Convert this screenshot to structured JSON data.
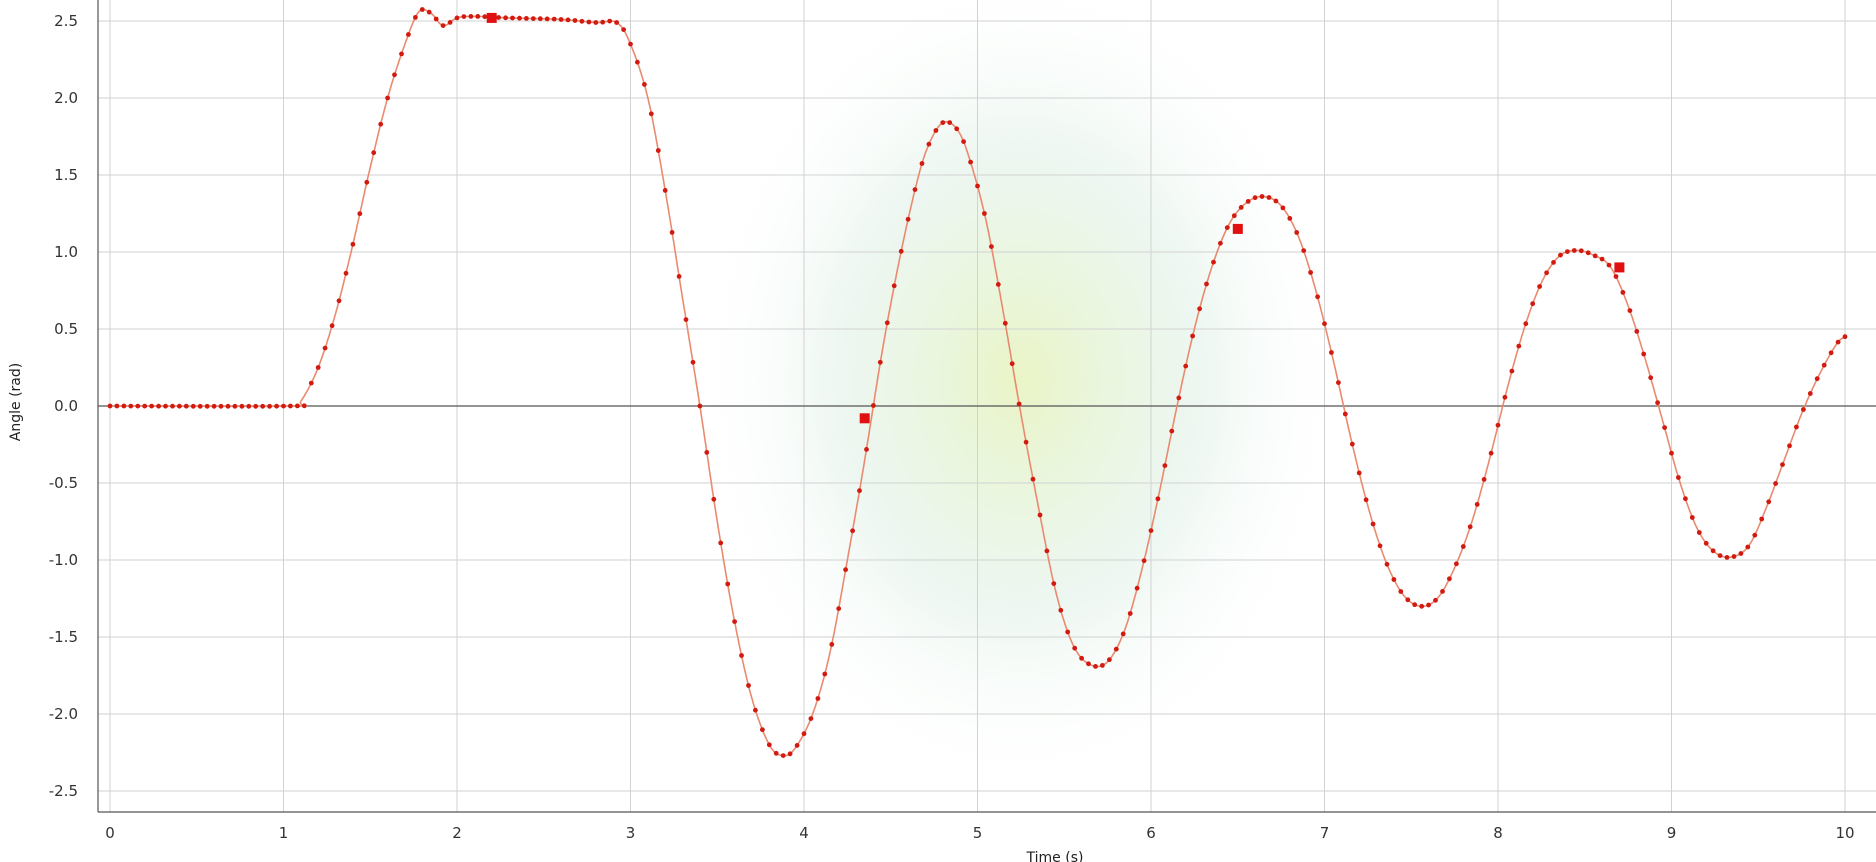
{
  "chart_data": {
    "type": "line",
    "title": "",
    "xlabel": "Time (s)",
    "ylabel": "Angle (rad)",
    "xlim": [
      0,
      10.2
    ],
    "ylim": [
      -2.5,
      2.6
    ],
    "grid": true,
    "x_ticks": [
      "0",
      "1",
      "2",
      "3",
      "4",
      "5",
      "6",
      "7",
      "8",
      "9",
      "10"
    ],
    "y_ticks": [
      "2.5",
      "2.0",
      "1.5",
      "1.0",
      "0.5",
      "0.0",
      "-0.5",
      "-1.0",
      "-1.5",
      "-2.0",
      "-2.5"
    ],
    "series": [
      {
        "name": "Angle",
        "color": "#d21a10",
        "points": [
          [
            0,
            0
          ],
          [
            1.05,
            0
          ],
          [
            1.1,
            0.03
          ],
          [
            1.2,
            0.25
          ],
          [
            1.3,
            0.6
          ],
          [
            1.4,
            1.05
          ],
          [
            1.5,
            1.55
          ],
          [
            1.6,
            2.0
          ],
          [
            1.7,
            2.35
          ],
          [
            1.78,
            2.56
          ],
          [
            1.85,
            2.55
          ],
          [
            1.92,
            2.47
          ],
          [
            2.0,
            2.52
          ],
          [
            2.1,
            2.53
          ],
          [
            2.3,
            2.52
          ],
          [
            2.6,
            2.51
          ],
          [
            2.8,
            2.49
          ],
          [
            2.92,
            2.49
          ],
          [
            3.0,
            2.35
          ],
          [
            3.1,
            2.0
          ],
          [
            3.2,
            1.4
          ],
          [
            3.3,
            0.7
          ],
          [
            3.4,
            0.0
          ],
          [
            3.5,
            -0.75
          ],
          [
            3.6,
            -1.4
          ],
          [
            3.7,
            -1.9
          ],
          [
            3.8,
            -2.2
          ],
          [
            3.88,
            -2.27
          ],
          [
            3.95,
            -2.22
          ],
          [
            4.05,
            -2.0
          ],
          [
            4.15,
            -1.6
          ],
          [
            4.25,
            -1.0
          ],
          [
            4.35,
            -0.35
          ],
          [
            4.45,
            0.35
          ],
          [
            4.55,
            0.95
          ],
          [
            4.65,
            1.45
          ],
          [
            4.72,
            1.7
          ],
          [
            4.8,
            1.84
          ],
          [
            4.88,
            1.8
          ],
          [
            4.95,
            1.62
          ],
          [
            5.05,
            1.2
          ],
          [
            5.15,
            0.6
          ],
          [
            5.25,
            -0.05
          ],
          [
            5.35,
            -0.65
          ],
          [
            5.45,
            -1.2
          ],
          [
            5.55,
            -1.55
          ],
          [
            5.65,
            -1.68
          ],
          [
            5.75,
            -1.66
          ],
          [
            5.85,
            -1.45
          ],
          [
            5.95,
            -1.05
          ],
          [
            6.05,
            -0.55
          ],
          [
            6.15,
            0.0
          ],
          [
            6.25,
            0.5
          ],
          [
            6.35,
            0.9
          ],
          [
            6.45,
            1.18
          ],
          [
            6.55,
            1.32
          ],
          [
            6.65,
            1.36
          ],
          [
            6.75,
            1.3
          ],
          [
            6.85,
            1.1
          ],
          [
            6.95,
            0.75
          ],
          [
            7.05,
            0.3
          ],
          [
            7.15,
            -0.2
          ],
          [
            7.25,
            -0.65
          ],
          [
            7.35,
            -1.0
          ],
          [
            7.45,
            -1.22
          ],
          [
            7.55,
            -1.3
          ],
          [
            7.65,
            -1.25
          ],
          [
            7.75,
            -1.05
          ],
          [
            7.85,
            -0.75
          ],
          [
            7.95,
            -0.35
          ],
          [
            8.05,
            0.1
          ],
          [
            8.15,
            0.5
          ],
          [
            8.25,
            0.8
          ],
          [
            8.35,
            0.97
          ],
          [
            8.45,
            1.01
          ],
          [
            8.55,
            0.98
          ],
          [
            8.65,
            0.9
          ],
          [
            8.75,
            0.65
          ],
          [
            8.85,
            0.3
          ],
          [
            8.95,
            -0.1
          ],
          [
            9.05,
            -0.5
          ],
          [
            9.15,
            -0.8
          ],
          [
            9.25,
            -0.95
          ],
          [
            9.35,
            -0.98
          ],
          [
            9.45,
            -0.9
          ],
          [
            9.55,
            -0.65
          ],
          [
            9.65,
            -0.35
          ],
          [
            9.75,
            -0.05
          ],
          [
            9.85,
            0.2
          ],
          [
            9.95,
            0.4
          ],
          [
            10.0,
            0.45
          ]
        ],
        "markers": [
          [
            2.2,
            2.52
          ],
          [
            4.35,
            -0.08
          ],
          [
            6.5,
            1.15
          ],
          [
            8.7,
            0.9
          ]
        ]
      }
    ]
  }
}
